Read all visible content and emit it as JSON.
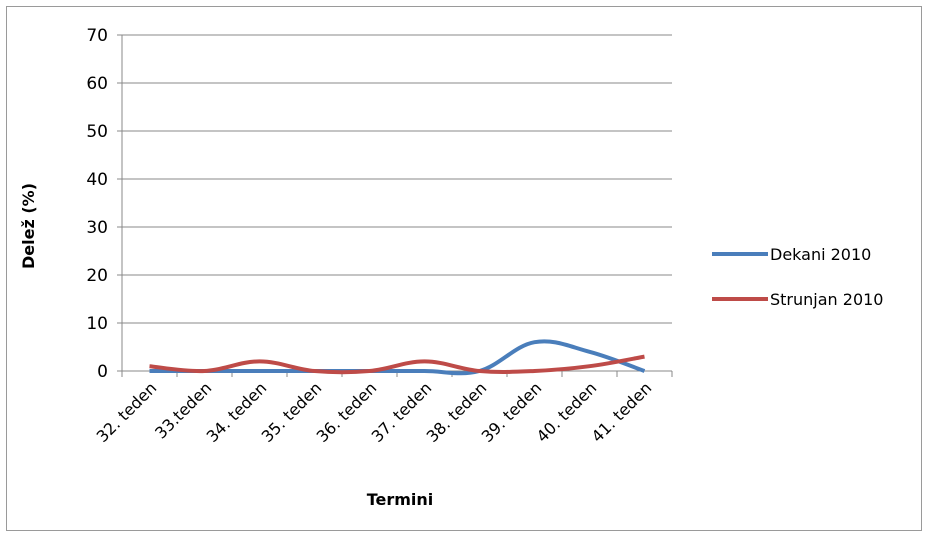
{
  "chart_data": {
    "type": "line",
    "title": "",
    "xlabel": "Termini",
    "ylabel": "Delež (%)",
    "ylim": [
      0,
      70
    ],
    "yticks": [
      0,
      10,
      20,
      30,
      40,
      50,
      60,
      70
    ],
    "grid": "horizontal",
    "legend_position": "right",
    "categories": [
      "32. teden",
      "33.teden",
      "34. teden",
      "35. teden",
      "36. teden",
      "37. teden",
      "38. teden",
      "39. teden",
      "40. teden",
      "41. teden"
    ],
    "series": [
      {
        "name": "Dekani 2010",
        "color": "#4a7ebb",
        "values": [
          0,
          0,
          0,
          0,
          0,
          0,
          0,
          6,
          4,
          0
        ]
      },
      {
        "name": "Strunjan 2010",
        "color": "#be4b48",
        "values": [
          1,
          0,
          2,
          0,
          0,
          2,
          0,
          0,
          1,
          3
        ]
      }
    ]
  }
}
